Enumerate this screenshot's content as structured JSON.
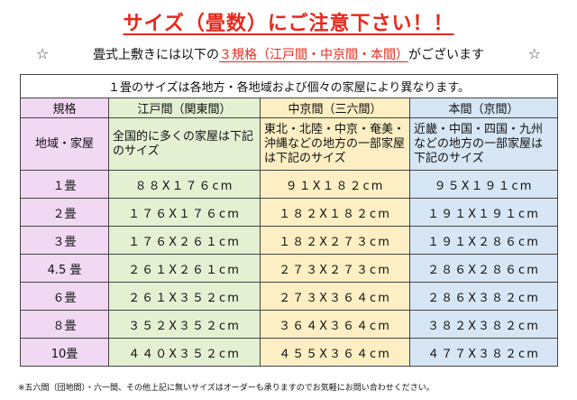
{
  "title": "サイズ（畳数）にご注意下さい！！",
  "subtitle": {
    "star_left": "☆",
    "before": "畳式上敷きには以下の",
    "highlight": "３規格（江戸間・中京間・本間）",
    "after": "がございます",
    "star_right": "☆"
  },
  "table": {
    "banner": "１畳のサイズは各地方・各地域および個々の家屋により異なります。",
    "header": {
      "label": "規格",
      "edo": "江戸間（関東間）",
      "chukyo": "中京間（三六間）",
      "honma": "本間（京間）"
    },
    "region": {
      "label": "地域・家屋",
      "edo": "全国的に多くの家屋は下記のサイズ",
      "chukyo": "東北・北陸・中京・奄美・沖縄などの地方の一部家屋は下記のサイズ",
      "honma": "近畿・中国・四国・九州などの地方の一部家屋は下記のサイズ"
    },
    "rows": [
      {
        "label": "１畳",
        "edo": "８８X１７６cm",
        "chukyo": "９１X１８２cm",
        "honma": "９５X１９１cm"
      },
      {
        "label": "２畳",
        "edo": "１７６X１７６cm",
        "chukyo": "１８２X１８２cm",
        "honma": "１９１X１９１cm"
      },
      {
        "label": "３畳",
        "edo": "１７６X２６１cm",
        "chukyo": "１８２X２７３cm",
        "honma": "１９１X２８６cm"
      },
      {
        "label": "4.5 畳",
        "edo": "２６１X２６１cm",
        "chukyo": "２７３X２７３cm",
        "honma": "２８６X２８６cm"
      },
      {
        "label": "６畳",
        "edo": "２６１X３５２cm",
        "chukyo": "２７３X３６４cm",
        "honma": "２８６X３８２cm"
      },
      {
        "label": "８畳",
        "edo": "３５２X３５２cm",
        "chukyo": "３６４X３６４cm",
        "honma": "３８２X３８２cm"
      },
      {
        "label": "10畳",
        "edo": "４４０X３５２cm",
        "chukyo": "４５５X３６４cm",
        "honma": "４７７X３８２cm"
      }
    ]
  },
  "footnote": "※五六間（団地間）・六一間、その他上記に無いサイズはオーダーも承りますのでお気軽にお問い合わせください。",
  "colors": {
    "accent_red": "#e8271b",
    "label_col": "#f1d8f3",
    "edo_col": "#e3f0d2",
    "chukyo_col": "#fdefc3",
    "honma_col": "#d6e6f5"
  }
}
